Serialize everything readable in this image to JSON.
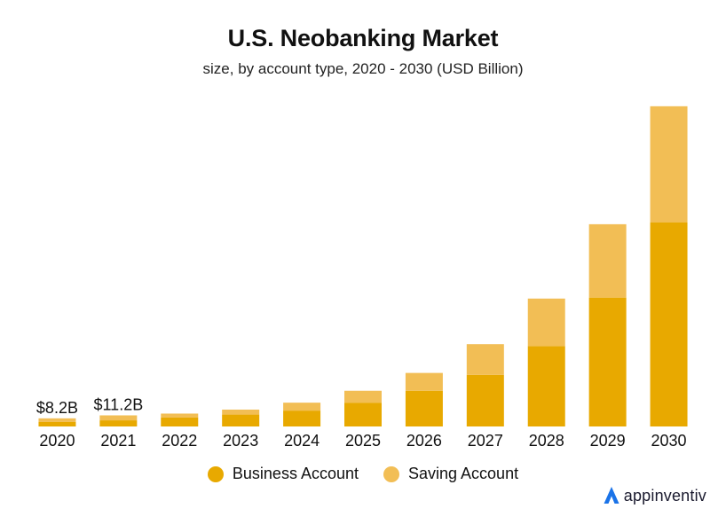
{
  "header": {
    "title": "U.S. Neobanking Market",
    "subtitle": "size, by account type, 2020 - 2030 (USD Billion)"
  },
  "legend": {
    "business_label": "Business Account",
    "saving_label": "Saving Account"
  },
  "brand": {
    "name": "appinventiv",
    "logo_icon": "triangle-logo-icon",
    "logo_color": "#1a73e8"
  },
  "colors": {
    "business": "#E8A900",
    "saving": "#F2BE55"
  },
  "chart_data": {
    "type": "bar",
    "stacked": true,
    "title": "U.S. Neobanking Market",
    "subtitle": "size, by account type, 2020 - 2030 (USD Billion)",
    "categories": [
      "2020",
      "2021",
      "2022",
      "2023",
      "2024",
      "2025",
      "2026",
      "2027",
      "2028",
      "2029",
      "2030"
    ],
    "series": [
      {
        "name": "Business Account",
        "values": [
          4.5,
          6.2,
          9.0,
          12.0,
          16.0,
          24.0,
          36.0,
          52.0,
          81.0,
          130.0,
          206.0
        ]
      },
      {
        "name": "Saving Account",
        "values": [
          3.7,
          5.0,
          4.0,
          5.0,
          8.0,
          12.0,
          18.0,
          31.0,
          48.0,
          74.0,
          117.0
        ]
      }
    ],
    "data_labels": [
      {
        "category": "2020",
        "text": "$8.2B"
      },
      {
        "category": "2021",
        "text": "$11.2B"
      }
    ],
    "ylim": [
      0,
      330
    ],
    "grid": false,
    "y_axis_visible": false,
    "legend_position": "bottom-center"
  }
}
